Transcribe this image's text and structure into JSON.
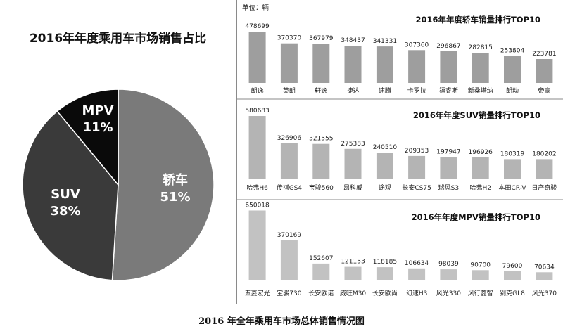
{
  "caption": "2016 年全年乘用车市场总体销售情况图",
  "chart_data": [
    {
      "type": "pie",
      "title": "2016年年度乘用车市场销售占比",
      "slices": [
        {
          "name": "轿车",
          "label": "51%",
          "value": 51,
          "color": "#7a7a7a"
        },
        {
          "name": "SUV",
          "label": "38%",
          "value": 38,
          "color": "#3a3a3a"
        },
        {
          "name": "MPV",
          "label": "11%",
          "value": 11,
          "color": "#0a0a0a"
        }
      ]
    },
    {
      "type": "bar",
      "title": "2016年年度轿车销量排行TOP10",
      "unit": "单位：辆",
      "categories": [
        "朗逸",
        "英朗",
        "轩逸",
        "捷达",
        "速腾",
        "卡罗拉",
        "福睿斯",
        "新桑塔纳",
        "朗动",
        "帝豪"
      ],
      "values": [
        478699,
        370370,
        367979,
        348437,
        341331,
        307360,
        296867,
        282815,
        253804,
        223781
      ],
      "ylim": [
        0,
        500000
      ]
    },
    {
      "type": "bar",
      "title": "2016年年度SUV销量排行TOP10",
      "categories": [
        "哈弗H6",
        "传祺GS4",
        "宝骏560",
        "昂科威",
        "途观",
        "长安CS75",
        "瑞风S3",
        "哈弗H2",
        "本田CR-V",
        "日产奇骏"
      ],
      "values": [
        580683,
        326906,
        321555,
        275383,
        240510,
        209353,
        197947,
        196926,
        180319,
        180202
      ],
      "ylim": [
        0,
        600000
      ]
    },
    {
      "type": "bar",
      "title": "2016年年度MPV销量排行TOP10",
      "categories": [
        "五菱宏光",
        "宝骏730",
        "长安欧诺",
        "威旺M30",
        "长安欧尚",
        "幻速H3",
        "风光330",
        "风行菱智",
        "别克GL8",
        "风光370"
      ],
      "values": [
        650018,
        370169,
        152607,
        121153,
        118185,
        106634,
        98039,
        90700,
        79600,
        70634
      ],
      "ylim": [
        0,
        660000
      ]
    }
  ]
}
